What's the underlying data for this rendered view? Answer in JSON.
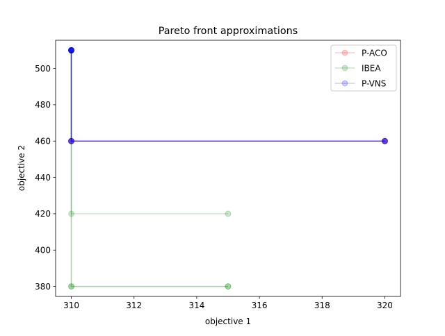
{
  "chart_data": {
    "type": "line",
    "title": "Pareto front approximations",
    "xlabel": "objective 1",
    "ylabel": "objective 2",
    "xlim": [
      309.5,
      320.5
    ],
    "ylim": [
      374.5,
      515.5
    ],
    "xticks": [
      310,
      312,
      314,
      316,
      318,
      320
    ],
    "yticks": [
      380,
      400,
      420,
      440,
      460,
      480,
      500
    ],
    "grid": false,
    "legend_position": "top-right",
    "series": [
      {
        "name": "P-ACO",
        "color": "#ff0000",
        "alpha": 0.2,
        "runs": [
          [
            [
              310,
              510
            ],
            [
              310,
              460
            ],
            [
              320,
              460
            ]
          ],
          [
            [
              310,
              510
            ],
            [
              310,
              460
            ],
            [
              320,
              460
            ]
          ]
        ]
      },
      {
        "name": "IBEA",
        "color": "#008000",
        "alpha": 0.2,
        "runs": [
          [
            [
              310,
              510
            ],
            [
              310,
              420
            ],
            [
              315,
              420
            ]
          ],
          [
            [
              310,
              510
            ],
            [
              310,
              380
            ],
            [
              315,
              380
            ]
          ],
          [
            [
              310,
              510
            ],
            [
              310,
              380
            ],
            [
              315,
              380
            ]
          ]
        ]
      },
      {
        "name": "P-VNS",
        "color": "#0000ff",
        "alpha": 0.2,
        "runs": [
          [
            [
              310,
              510
            ],
            [
              310,
              460
            ],
            [
              320,
              460
            ]
          ],
          [
            [
              310,
              510
            ],
            [
              310,
              460
            ],
            [
              320,
              460
            ]
          ],
          [
            [
              310,
              510
            ],
            [
              310,
              460
            ],
            [
              320,
              460
            ]
          ],
          [
            [
              310,
              510
            ],
            [
              310,
              460
            ],
            [
              320,
              460
            ]
          ],
          [
            [
              310,
              510
            ]
          ],
          [
            [
              310,
              510
            ]
          ],
          [
            [
              310,
              510
            ]
          ]
        ]
      }
    ]
  }
}
